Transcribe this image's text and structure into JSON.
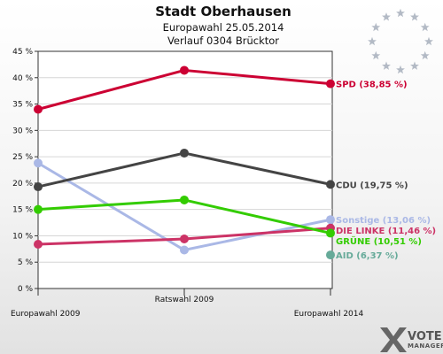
{
  "chart_data": {
    "type": "line",
    "title": "Stadt Oberhausen",
    "subtitle_1": "Europawahl 25.05.2014",
    "subtitle_2": "Verlauf 0304 Brücktor",
    "categories": [
      "Europawahl 2009",
      "Ratswahl 2009",
      "Europawahl 2014"
    ],
    "ylim": [
      0,
      45
    ],
    "yticks": [
      "0 %",
      "5 %",
      "10 %",
      "15 %",
      "20 %",
      "25 %",
      "30 %",
      "35 %",
      "40 %",
      "45 %"
    ],
    "grid": true,
    "series": [
      {
        "id": "spd",
        "values": [
          34.0,
          41.4,
          38.85
        ],
        "color": "#cc0033",
        "end_label": "SPD (38,85 %)"
      },
      {
        "id": "sonstige",
        "values": [
          23.8,
          7.3,
          13.06
        ],
        "color": "#aab8e6",
        "end_label": "Sonstige (13,06 %)"
      },
      {
        "id": "linke",
        "values": [
          8.4,
          9.4,
          11.46
        ],
        "color": "#cc3366",
        "end_label": "DIE LINKE (11,46 %)"
      },
      {
        "id": "cdu",
        "values": [
          19.3,
          25.7,
          19.75
        ],
        "color": "#444444",
        "end_label": "CDU (19,75 %)"
      },
      {
        "id": "gruene",
        "values": [
          15.0,
          16.8,
          10.51
        ],
        "color": "#33cc00",
        "end_label": "GRÜNE (10,51 %)"
      },
      {
        "id": "aid",
        "values": [
          null,
          null,
          6.37
        ],
        "color": "#66aa99",
        "end_label": "AID (6,37 %)"
      }
    ]
  },
  "brand": {
    "line1": "VOTE",
    "line2": "MANAGER"
  },
  "eu_star_color": "#b3bac5"
}
